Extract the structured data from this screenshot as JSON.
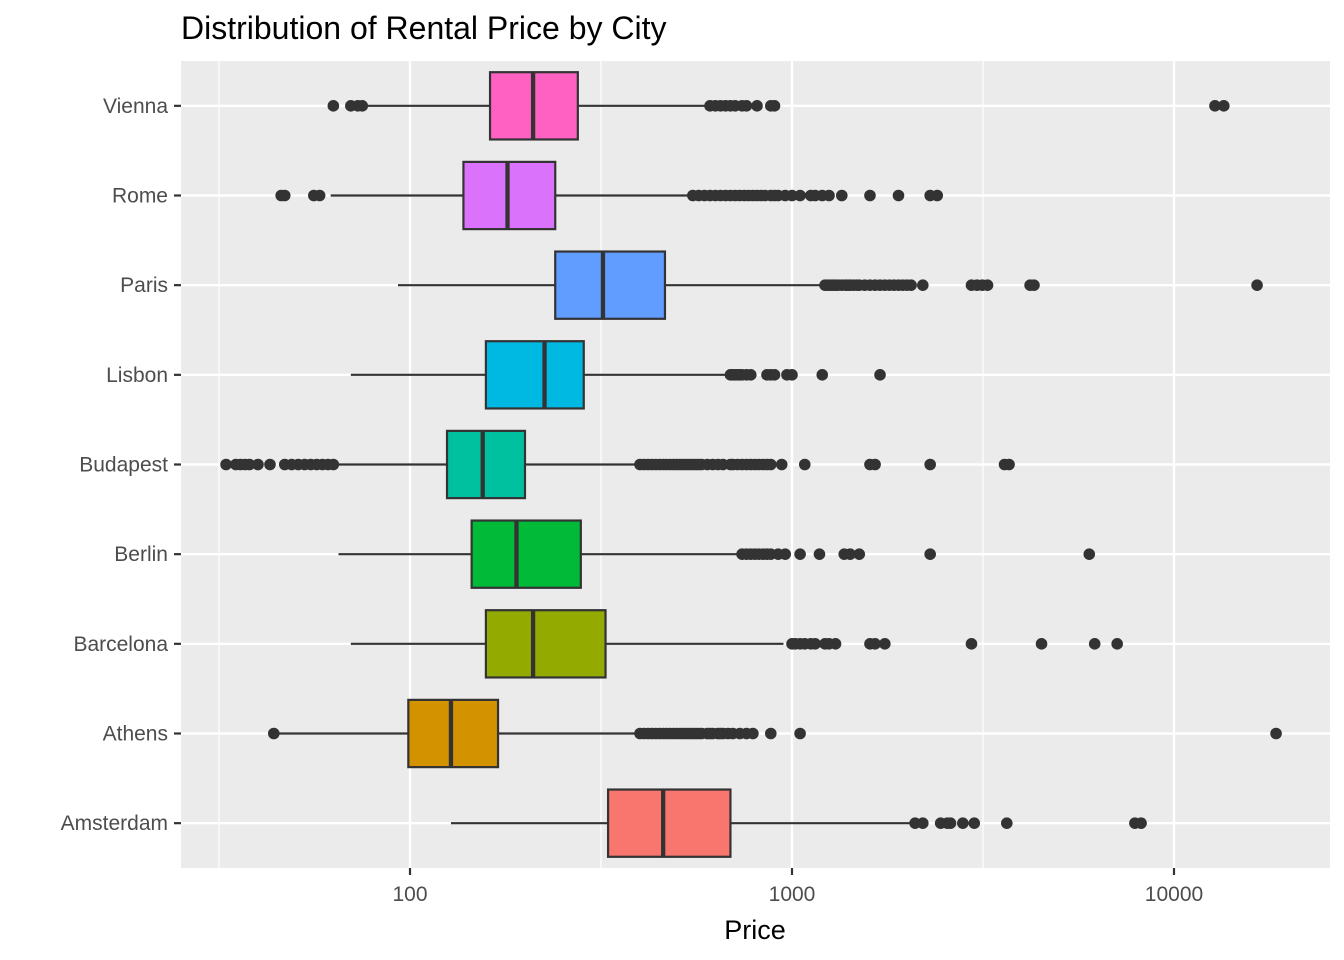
{
  "chart_data": {
    "type": "boxplot",
    "title": "Distribution of Rental Price by City",
    "xlabel": "Price",
    "ylabel": "",
    "x_scale": "log10",
    "xlim": [
      25,
      25000
    ],
    "x_ticks": [
      100,
      1000,
      10000
    ],
    "x_tick_labels": [
      "100",
      "1000",
      "10000"
    ],
    "grid": true,
    "legend": "none",
    "categories": [
      "Amsterdam",
      "Athens",
      "Barcelona",
      "Berlin",
      "Budapest",
      "Lisbon",
      "Paris",
      "Rome",
      "Vienna"
    ],
    "series": [
      {
        "city": "Amsterdam",
        "color": "#F8766D",
        "whisker_low": 128,
        "q1": 330,
        "median": 460,
        "q3": 690,
        "whisker_high": 2050,
        "outliers": [
          2100,
          2200,
          2450,
          2550,
          2600,
          2800,
          3000,
          3650,
          7900,
          8200
        ]
      },
      {
        "city": "Athens",
        "color": "#D39200",
        "whisker_low": 45,
        "q1": 99,
        "median": 128,
        "q3": 170,
        "whisker_high": 400,
        "outliers": [
          44,
          400,
          410,
          420,
          430,
          440,
          450,
          460,
          470,
          480,
          490,
          500,
          510,
          520,
          530,
          540,
          550,
          560,
          570,
          580,
          600,
          610,
          620,
          640,
          650,
          660,
          680,
          700,
          730,
          760,
          790,
          880,
          1050,
          18500
        ]
      },
      {
        "city": "Barcelona",
        "color": "#93AA00",
        "whisker_low": 70,
        "q1": 158,
        "median": 210,
        "q3": 325,
        "whisker_high": 950,
        "outliers": [
          1000,
          1020,
          1050,
          1080,
          1120,
          1150,
          1220,
          1250,
          1300,
          1600,
          1650,
          1750,
          2950,
          4500,
          6200,
          7100
        ]
      },
      {
        "city": "Berlin",
        "color": "#00BA38",
        "whisker_low": 65,
        "q1": 145,
        "median": 190,
        "q3": 280,
        "whisker_high": 720,
        "outliers": [
          740,
          760,
          780,
          800,
          820,
          840,
          860,
          880,
          920,
          960,
          1050,
          1180,
          1370,
          1420,
          1500,
          2300,
          6000
        ]
      },
      {
        "city": "Budapest",
        "color": "#00C19F",
        "whisker_low": 65,
        "q1": 125,
        "median": 155,
        "q3": 200,
        "whisker_high": 390,
        "outliers": [
          33,
          35,
          36,
          37,
          38,
          40,
          43,
          47,
          49,
          51,
          53,
          55,
          57,
          59,
          61,
          63,
          400,
          410,
          420,
          430,
          440,
          450,
          460,
          470,
          480,
          490,
          500,
          510,
          520,
          530,
          540,
          550,
          560,
          570,
          580,
          600,
          620,
          640,
          660,
          690,
          700,
          720,
          740,
          760,
          780,
          800,
          820,
          840,
          860,
          880,
          940,
          1080,
          1600,
          1650,
          2300,
          3600,
          3700
        ]
      },
      {
        "city": "Lisbon",
        "color": "#00B9E3",
        "whisker_low": 70,
        "q1": 158,
        "median": 225,
        "q3": 285,
        "whisker_high": 690,
        "outliers": [
          690,
          700,
          710,
          720,
          730,
          740,
          760,
          780,
          860,
          880,
          900,
          970,
          1000,
          1200,
          1700
        ]
      },
      {
        "city": "Paris",
        "color": "#619CFF",
        "whisker_low": 93,
        "q1": 240,
        "median": 320,
        "q3": 465,
        "whisker_high": 1200,
        "outliers": [
          1220,
          1240,
          1260,
          1280,
          1300,
          1320,
          1350,
          1380,
          1400,
          1420,
          1450,
          1480,
          1500,
          1550,
          1600,
          1650,
          1700,
          1750,
          1800,
          1850,
          1900,
          1950,
          2000,
          2050,
          2200,
          2950,
          3050,
          3150,
          3250,
          4200,
          4300,
          16500
        ]
      },
      {
        "city": "Rome",
        "color": "#DB72FB",
        "whisker_low": 62,
        "q1": 138,
        "median": 180,
        "q3": 240,
        "whisker_high": 550,
        "outliers": [
          46,
          47,
          56,
          58,
          550,
          570,
          590,
          610,
          630,
          650,
          670,
          690,
          710,
          730,
          750,
          770,
          790,
          810,
          830,
          850,
          880,
          900,
          920,
          960,
          1000,
          1050,
          1120,
          1150,
          1200,
          1250,
          1350,
          1600,
          1900,
          2300,
          2400
        ]
      },
      {
        "city": "Vienna",
        "color": "#FF61C3",
        "whisker_low": 75,
        "q1": 162,
        "median": 210,
        "q3": 275,
        "whisker_high": 600,
        "outliers": [
          63,
          70,
          73,
          75,
          610,
          630,
          650,
          670,
          690,
          710,
          740,
          760,
          810,
          880,
          900,
          12800,
          13500
        ]
      }
    ]
  }
}
